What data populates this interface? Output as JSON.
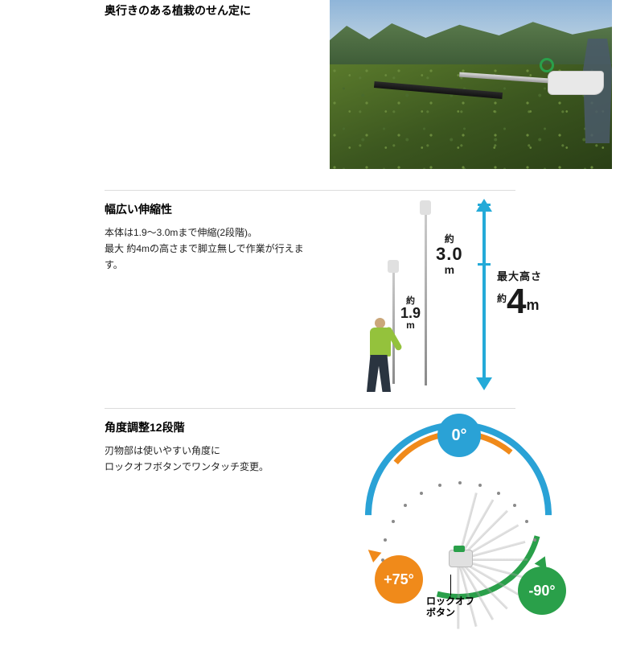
{
  "sections": {
    "s1": {
      "headline": "奥行きのある植栽のせん定に"
    },
    "s2": {
      "headline": "幅広い伸縮性",
      "body": "本体は1.9～3.0mまで伸縮(2段階)。\n最大 約4mの高さまで脚立無しで作業が行えます。",
      "diagram": {
        "height_3_0": {
          "yaku": "約",
          "value": "3.0",
          "unit": "m"
        },
        "height_1_9": {
          "yaku": "約",
          "value": "1.9",
          "unit": "m"
        },
        "max": {
          "line1": "最大高さ",
          "yaku": "約",
          "value": "4",
          "unit": "m"
        },
        "arrow_color": "#24aad8"
      }
    },
    "s3": {
      "headline": "角度調整12段階",
      "body": "刃物部は使いやすい角度に\nロックオフボタンでワンタッチ変更。",
      "diagram": {
        "angle_0": {
          "label": "0°",
          "color": "#2aa2d6"
        },
        "angle_75": {
          "label": "+75°",
          "color": "#f08a1a"
        },
        "angle_90": {
          "label": "-90°",
          "color": "#2aa04a"
        },
        "lockoff": "ロックオフ\nボタン",
        "steps": 12
      }
    }
  }
}
